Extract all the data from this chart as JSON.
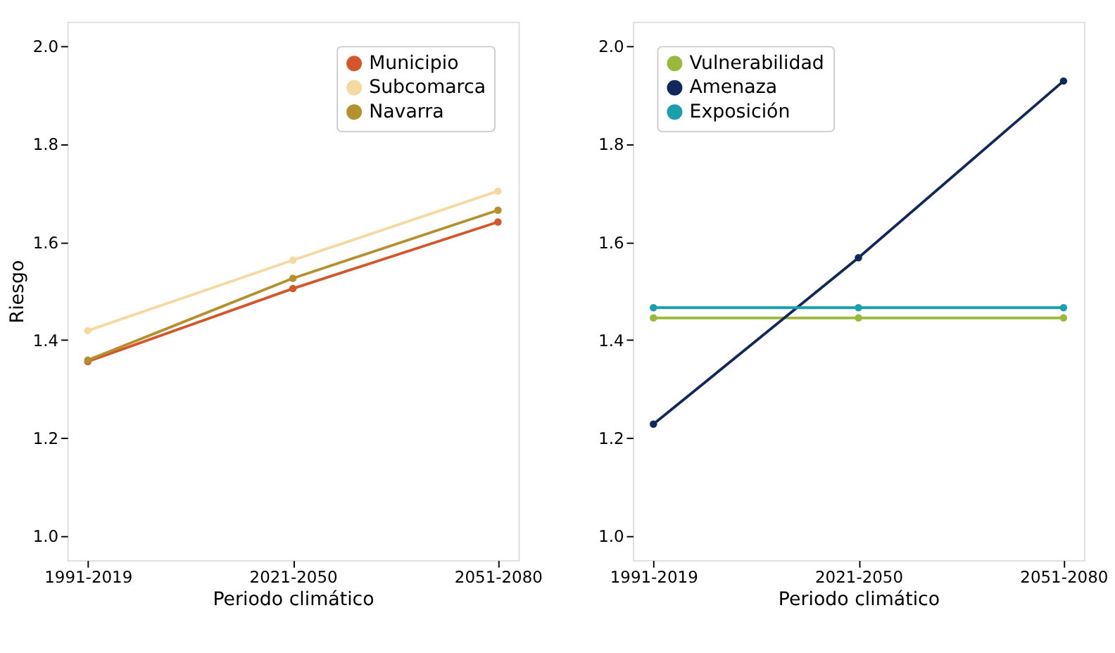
{
  "chart_data": [
    {
      "type": "line",
      "categories": [
        "1991-2019",
        "2021-2050",
        "2051-2080"
      ],
      "xlabel": "Periodo climático",
      "ylabel": "Riesgo",
      "ylim": [
        0.95,
        2.05
      ],
      "yticks": [
        {
          "value": 1,
          "label": "1.0"
        },
        1.2,
        1.4,
        1.6,
        1.8,
        {
          "value": 2,
          "label": "2.0"
        }
      ],
      "legend": "top right",
      "marker": "circle",
      "series": [
        {
          "name": "Municipio",
          "color": "#d4562a",
          "values": [
            1.356,
            1.505,
            1.641
          ]
        },
        {
          "name": "Subcomarca",
          "color": "#f5d9a0",
          "values": [
            1.419,
            1.563,
            1.704
          ]
        },
        {
          "name": "Navarra",
          "color": "#b5902e",
          "values": [
            1.359,
            1.526,
            1.665
          ]
        }
      ]
    },
    {
      "type": "line",
      "categories": [
        "1991-2019",
        "2021-2050",
        "2051-2080"
      ],
      "xlabel": "Periodo climático",
      "ylim": [
        0.95,
        2.05
      ],
      "yticks": [
        {
          "value": 1,
          "label": "1.0"
        },
        1.2,
        1.4,
        1.6,
        1.8,
        {
          "value": 2,
          "label": "2.0"
        }
      ],
      "legend": "top left",
      "marker": "circle",
      "series": [
        {
          "name": "Vulnerabilidad",
          "color": "#9ab83a",
          "values": [
            1.445,
            1.445,
            1.445
          ]
        },
        {
          "name": "Amenaza",
          "color": "#13285a",
          "values": [
            1.228,
            1.568,
            1.929
          ]
        },
        {
          "name": "Exposición",
          "color": "#1a9fae",
          "values": [
            1.466,
            1.466,
            1.466
          ]
        }
      ]
    }
  ]
}
